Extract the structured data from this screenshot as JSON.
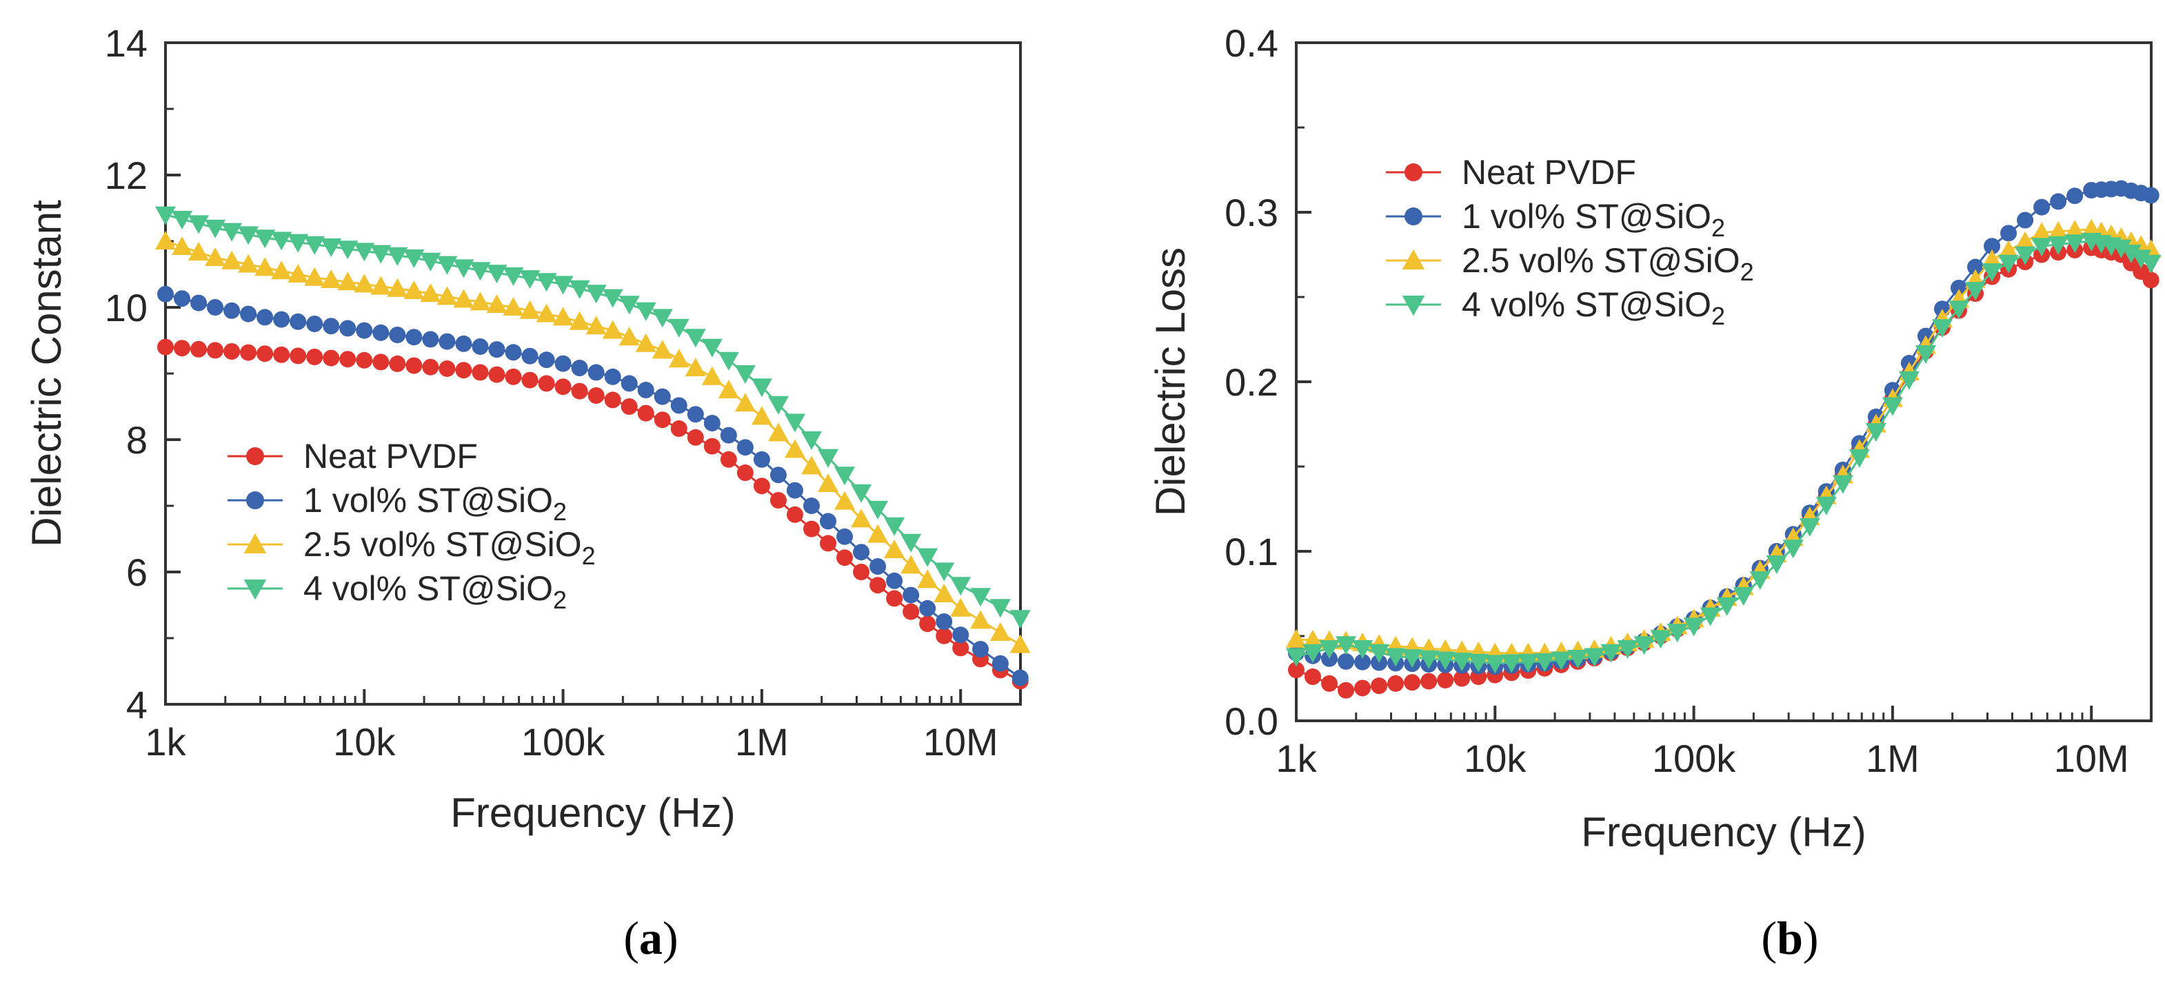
{
  "panels": [
    {
      "id": "a",
      "caption": "a",
      "chart_data": {
        "type": "line",
        "title": "",
        "xlabel": "Frequency (Hz)",
        "ylabel": "Dielectric Constant",
        "xscale": "log",
        "xlim": [
          1000,
          20000000
        ],
        "ylim": [
          4,
          14
        ],
        "xticks": [
          1000,
          10000,
          100000,
          1000000,
          10000000
        ],
        "xtick_labels": [
          "1k",
          "10k",
          "100k",
          "1M",
          "10M"
        ],
        "yticks": [
          4,
          6,
          8,
          10,
          12,
          14
        ],
        "ytick_labels": [
          "4",
          "6",
          "8",
          "10",
          "12",
          "14"
        ],
        "legend_position": "lower-left",
        "x_decades": [
          3.0,
          3.25,
          3.5,
          3.75,
          4.0,
          4.25,
          4.5,
          4.75,
          5.0,
          5.25,
          5.5,
          5.75,
          6.0,
          6.25,
          6.5,
          6.75,
          7.0,
          7.3
        ],
        "series": [
          {
            "name": "Neat PVDF",
            "label_main": "Neat PVDF",
            "label_sub": "",
            "color": "#e0342e",
            "marker": "circle",
            "values": [
              9.4,
              9.35,
              9.3,
              9.25,
              9.2,
              9.12,
              9.05,
              8.95,
              8.8,
              8.6,
              8.3,
              7.9,
              7.3,
              6.65,
              6.0,
              5.4,
              4.85,
              4.35
            ]
          },
          {
            "name": "1 vol% ST@SiO2",
            "label_main": "1 vol% ST@SiO",
            "label_sub": "2",
            "color": "#3a64ad",
            "marker": "circle",
            "values": [
              10.2,
              10.0,
              9.85,
              9.75,
              9.65,
              9.55,
              9.45,
              9.32,
              9.15,
              8.95,
              8.65,
              8.25,
              7.7,
              7.0,
              6.3,
              5.65,
              5.05,
              4.4
            ]
          },
          {
            "name": "2.5 vol% ST@SiO2",
            "label_main": "2.5 vol% ST@SiO",
            "label_sub": "2",
            "color": "#f2c12e",
            "marker": "triangle-up",
            "values": [
              11.0,
              10.75,
              10.6,
              10.45,
              10.35,
              10.25,
              10.12,
              10.0,
              9.85,
              9.65,
              9.35,
              8.95,
              8.35,
              7.6,
              6.8,
              6.1,
              5.45,
              4.9
            ]
          },
          {
            "name": "4 vol% ST@SiO2",
            "label_main": "4 vol% ST@SiO",
            "label_sub": "2",
            "color": "#4cc38a",
            "marker": "triangle-down",
            "values": [
              11.4,
              11.2,
              11.05,
              10.95,
              10.85,
              10.75,
              10.6,
              10.48,
              10.35,
              10.15,
              9.85,
              9.4,
              8.8,
              8.0,
              7.2,
              6.45,
              5.8,
              5.3
            ]
          }
        ]
      }
    },
    {
      "id": "b",
      "caption": "b",
      "chart_data": {
        "type": "line",
        "title": "",
        "xlabel": "Frequency (Hz)",
        "ylabel": "Dielectric Loss",
        "xscale": "log",
        "xlim": [
          1000,
          20000000
        ],
        "ylim": [
          0.0,
          0.4
        ],
        "xticks": [
          1000,
          10000,
          100000,
          1000000,
          10000000
        ],
        "xtick_labels": [
          "1k",
          "10k",
          "100k",
          "1M",
          "10M"
        ],
        "yticks": [
          0.0,
          0.1,
          0.2,
          0.3,
          0.4
        ],
        "ytick_labels": [
          "0.0",
          "0.1",
          "0.2",
          "0.3",
          "0.4"
        ],
        "legend_position": "upper-left",
        "x_decades": [
          3.0,
          3.25,
          3.5,
          3.75,
          4.0,
          4.25,
          4.5,
          4.75,
          5.0,
          5.25,
          5.5,
          5.75,
          6.0,
          6.25,
          6.5,
          6.75,
          7.0,
          7.15,
          7.3
        ],
        "series": [
          {
            "name": "Neat PVDF",
            "label_main": "Neat PVDF",
            "label_sub": "",
            "color": "#e0342e",
            "marker": "circle",
            "values": [
              0.03,
              0.018,
              0.022,
              0.024,
              0.027,
              0.031,
              0.037,
              0.046,
              0.058,
              0.08,
              0.11,
              0.145,
              0.19,
              0.232,
              0.262,
              0.275,
              0.279,
              0.275,
              0.26
            ]
          },
          {
            "name": "1 vol% ST@SiO2",
            "label_main": "1 vol% ST@SiO",
            "label_sub": "2",
            "color": "#3a64ad",
            "marker": "circle",
            "values": [
              0.04,
              0.035,
              0.034,
              0.033,
              0.032,
              0.034,
              0.038,
              0.047,
              0.06,
              0.08,
              0.11,
              0.148,
              0.195,
              0.243,
              0.28,
              0.303,
              0.313,
              0.314,
              0.31
            ]
          },
          {
            "name": "2.5 vol% ST@SiO2",
            "label_main": "2.5 vol% ST@SiO",
            "label_sub": "2",
            "color": "#f2c12e",
            "marker": "triangle-up",
            "values": [
              0.048,
              0.047,
              0.044,
              0.042,
              0.04,
              0.04,
              0.042,
              0.048,
              0.06,
              0.079,
              0.108,
              0.145,
              0.19,
              0.237,
              0.272,
              0.288,
              0.29,
              0.285,
              0.278
            ]
          },
          {
            "name": "4 vol% ST@SiO2",
            "label_main": "4 vol% ST@SiO",
            "label_sub": "2",
            "color": "#4cc38a",
            "marker": "triangle-down",
            "values": [
              0.038,
              0.045,
              0.038,
              0.036,
              0.034,
              0.035,
              0.038,
              0.045,
              0.056,
              0.074,
              0.102,
              0.14,
              0.186,
              0.232,
              0.265,
              0.28,
              0.283,
              0.279,
              0.27
            ]
          }
        ]
      }
    }
  ]
}
